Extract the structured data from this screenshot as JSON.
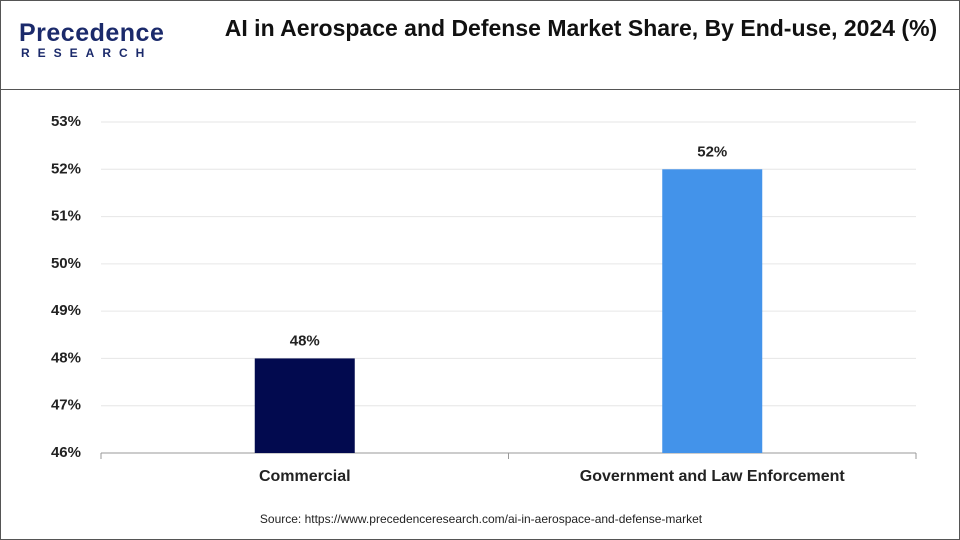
{
  "logo": {
    "name": "Precedence",
    "tagline": "RESEARCH"
  },
  "chart_data": {
    "type": "bar",
    "title": "AI in Aerospace and Defense Market Share, By End-use, 2024 (%)",
    "categories": [
      "Commercial",
      "Government and Law Enforcement"
    ],
    "series": [
      {
        "name": "Market Share",
        "colors": [
          "#020a4f",
          "#4393ea"
        ],
        "values": [
          48,
          52
        ],
        "value_labels": [
          "48%",
          "52%"
        ]
      }
    ],
    "ylim": [
      46,
      53
    ],
    "yticks": [
      {
        "value": 46,
        "label": "46%"
      },
      {
        "value": 47,
        "label": "47%"
      },
      {
        "value": 48,
        "label": "48%"
      },
      {
        "value": 49,
        "label": "49%"
      },
      {
        "value": 50,
        "label": "50%"
      },
      {
        "value": 51,
        "label": "51%"
      },
      {
        "value": 52,
        "label": "52%"
      },
      {
        "value": 53,
        "label": "53%"
      }
    ],
    "grid": true,
    "source": "Source: https://www.precedenceresearch.com/ai-in-aerospace-and-defense-market"
  }
}
